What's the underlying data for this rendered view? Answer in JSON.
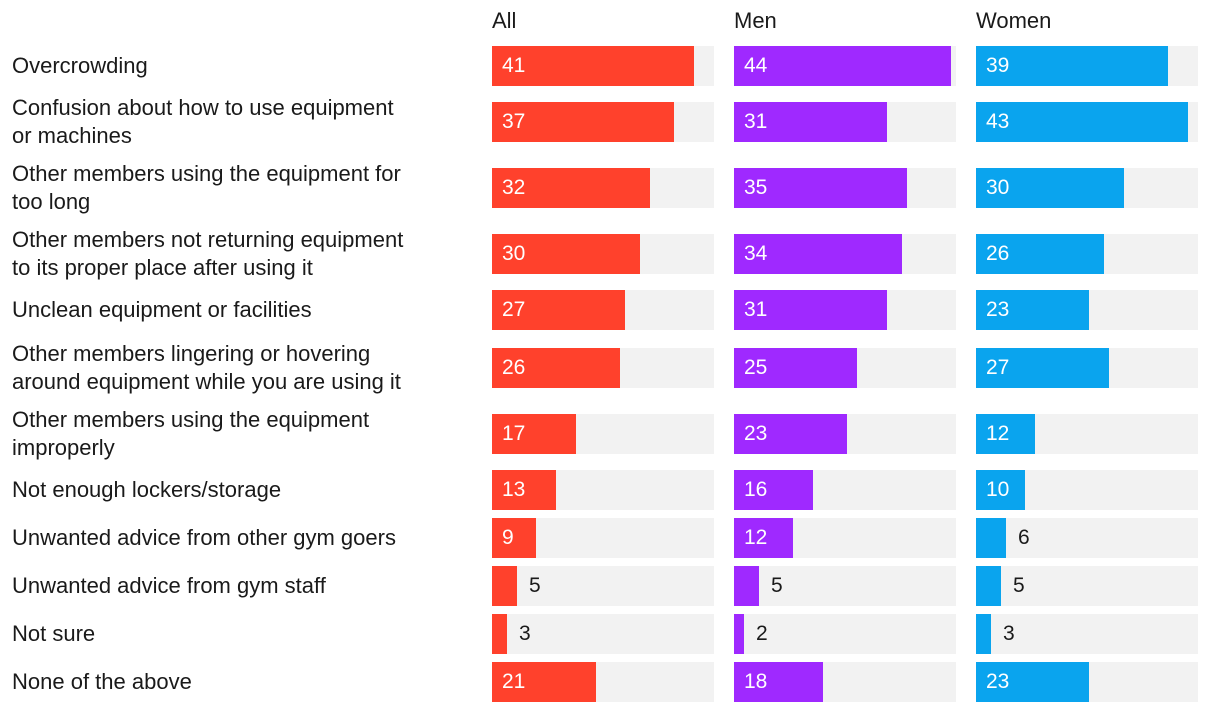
{
  "chart_data": {
    "type": "bar",
    "orientation": "horizontal",
    "title": "",
    "xlim": [
      0,
      45
    ],
    "categories": [
      "Overcrowding",
      "Confusion about how to use equipment\nor machines",
      "Other members using the equipment for\ntoo long",
      "Other members not returning equipment\nto its proper place after using it",
      "Unclean equipment or facilities",
      "Other members lingering or hovering\naround equipment while you are using it",
      "Other members using the equipment\nimproperly",
      "Not enough lockers/storage",
      "Unwanted advice from other gym goers",
      "Unwanted advice from gym staff",
      "Not sure",
      "None of the above"
    ],
    "series": [
      {
        "name": "All",
        "color": "#ff412c",
        "values": [
          41,
          37,
          32,
          30,
          27,
          26,
          17,
          13,
          9,
          5,
          3,
          21
        ]
      },
      {
        "name": "Men",
        "color": "#9f29ff",
        "values": [
          44,
          31,
          35,
          34,
          31,
          25,
          23,
          16,
          12,
          5,
          2,
          18
        ]
      },
      {
        "name": "Women",
        "color": "#0aa4ee",
        "values": [
          39,
          43,
          30,
          26,
          23,
          27,
          12,
          10,
          6,
          5,
          3,
          23
        ]
      }
    ]
  }
}
